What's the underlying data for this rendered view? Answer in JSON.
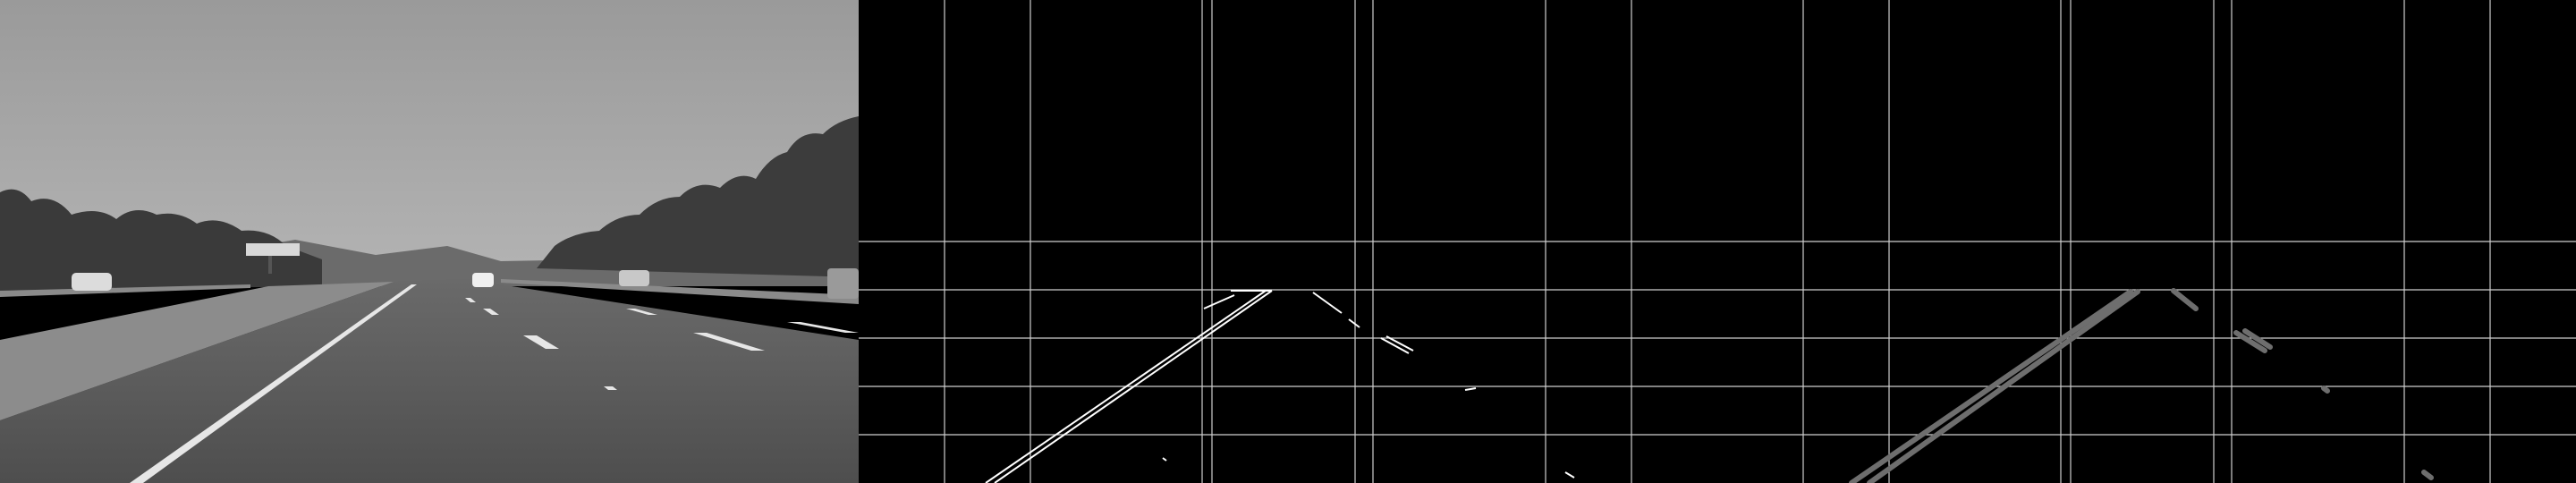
{
  "panels": [
    {
      "id": "grayscale-road",
      "kind": "grayscale-photo",
      "caption": ""
    },
    {
      "id": "edges-grid",
      "kind": "edge-map-with-grid",
      "caption": ""
    },
    {
      "id": "lane-lines-grid",
      "kind": "lane-segments-with-grid",
      "caption": ""
    }
  ],
  "colors": {
    "sky": "#a4a4a4",
    "road": "#555555",
    "vegetation": "#3b3b3b",
    "grid": "#cfcfcf",
    "edge": "#ffffff",
    "lane_segment": "#6e6e6e"
  }
}
